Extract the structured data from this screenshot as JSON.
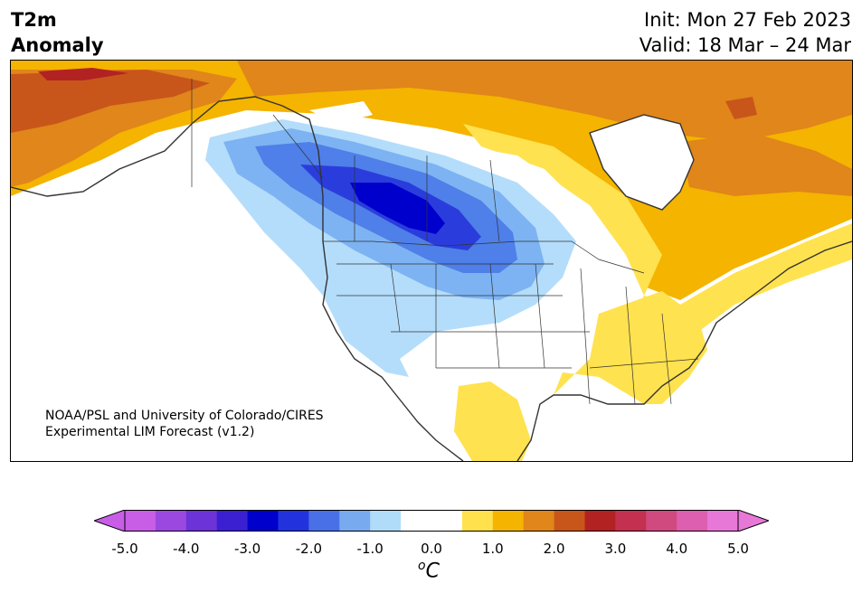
{
  "title": {
    "variable": "T2m",
    "subtitle": "Anomaly",
    "init": "Init: Mon 27 Feb 2023",
    "valid": "Valid: 18 Mar – 24 Mar"
  },
  "credit": {
    "line1": "NOAA/PSL and University of Colorado/CIRES",
    "line2": "Experimental LIM Forecast (v1.2)"
  },
  "colorbar": {
    "tick_labels": [
      "-5.0",
      "-4.0",
      "-3.0",
      "-2.0",
      "-1.0",
      "0.0",
      "1.0",
      "2.0",
      "3.0",
      "4.0",
      "5.0"
    ],
    "colors": [
      "#c85ee6",
      "#9b48e0",
      "#6b33d8",
      "#3a20d0",
      "#0000cc",
      "#2233dd",
      "#4a70e8",
      "#78aaf0",
      "#b0dcfa",
      "#ffffff",
      "#ffffff",
      "#ffe04d",
      "#f4b400",
      "#e0861a",
      "#c8561a",
      "#b22222",
      "#c43050",
      "#d04a80",
      "#dd5fb0",
      "#e878d8"
    ],
    "unit_base": "C",
    "unit_sup": "o"
  },
  "palette": {
    "cold_extreme": "#0000cc",
    "cold_strong": "#2a3ddc",
    "cold_mid": "#4f7fe8",
    "cold_weak": "#7db3f2",
    "cold_faint": "#b4ddfb",
    "warm_faint": "#ffe24f",
    "warm_weak": "#f4b400",
    "warm_mid": "#e0861a",
    "warm_strong": "#c8561a",
    "warm_extreme": "#b22222"
  }
}
